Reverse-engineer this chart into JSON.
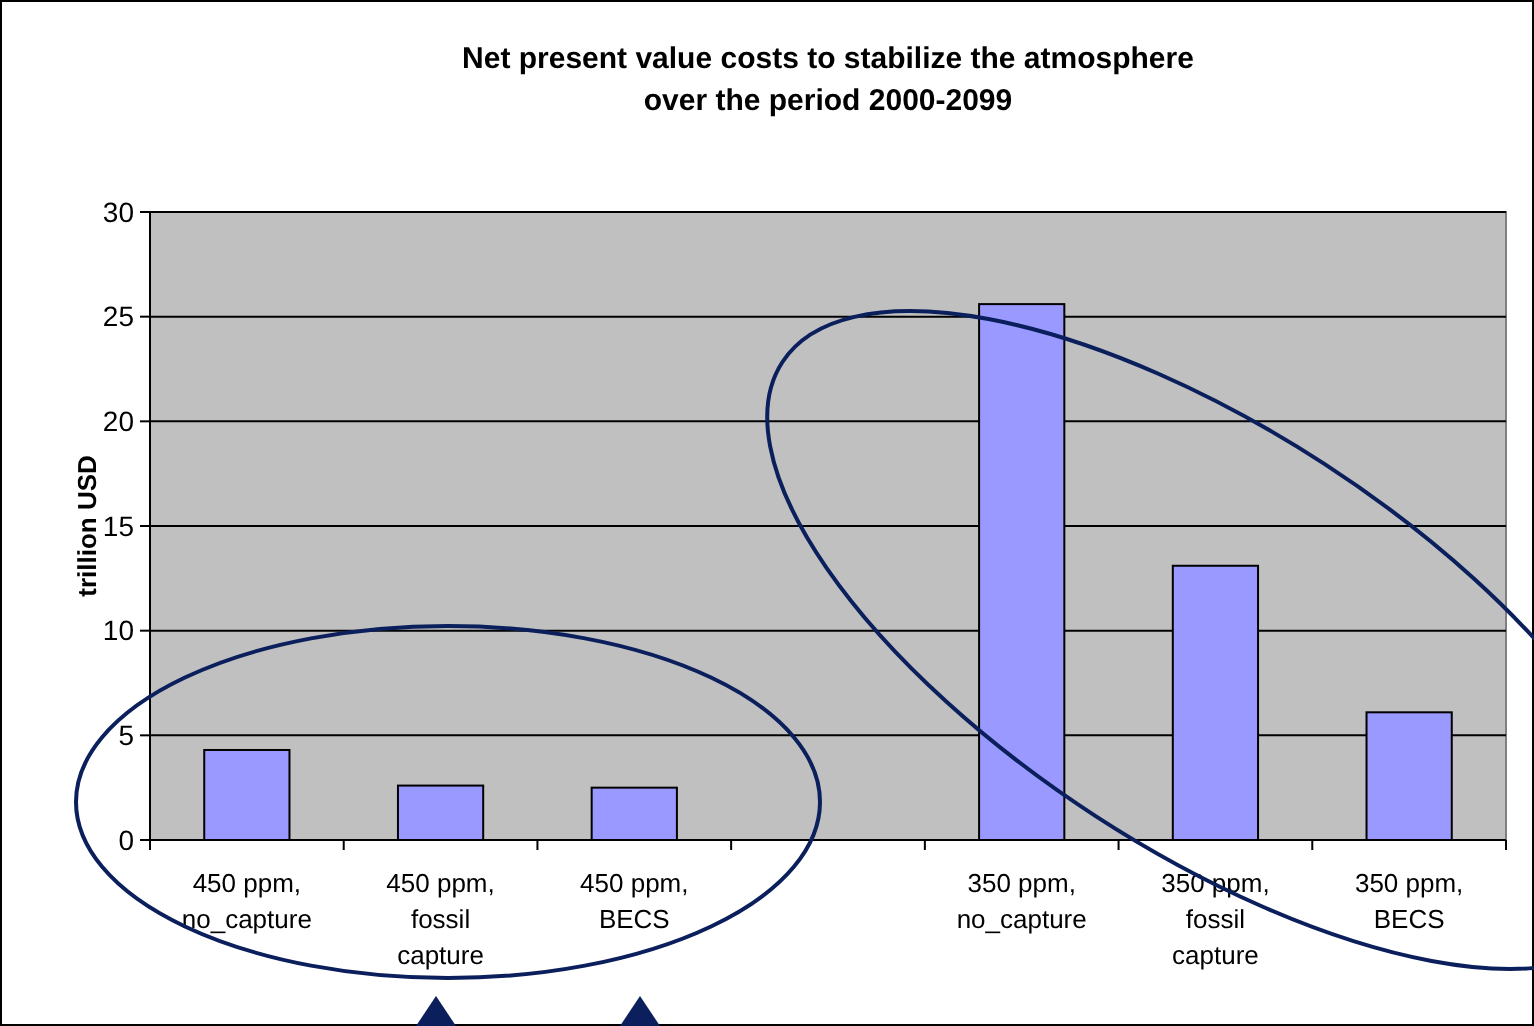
{
  "chart_data": {
    "type": "bar",
    "title": "Net present value costs to stabilize the atmosphere\nover the period 2000-2099",
    "ylabel": "trillion USD",
    "categories": [
      "450 ppm, no_capture",
      "450 ppm, fossil capture",
      "450 ppm, BECS",
      null,
      "350 ppm, no_capture",
      "350 ppm, fossil capture",
      "350 ppm, BECS"
    ],
    "values": [
      4.3,
      2.6,
      2.5,
      null,
      25.6,
      13.1,
      6.1
    ],
    "color": "#9999ff",
    "ylim": [
      0,
      30
    ],
    "yticks": [
      0,
      5,
      10,
      15,
      20,
      25,
      30
    ],
    "grid": "y"
  }
}
